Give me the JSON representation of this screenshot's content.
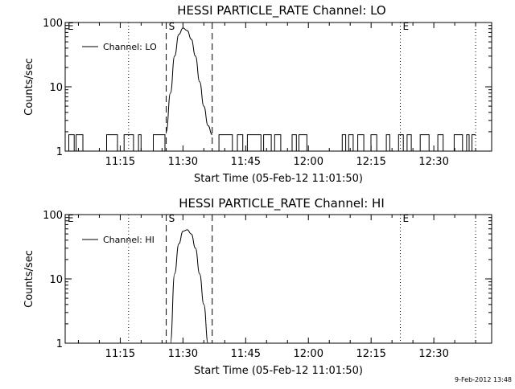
{
  "chart_data": [
    {
      "type": "line",
      "title": "HESSI PARTICLE_RATE Channel: LO",
      "xlabel": "Start Time (05-Feb-12 11:01:50)",
      "ylabel": "Counts/sec",
      "y_scale": "log",
      "ylim": [
        1,
        100
      ],
      "xlim": [
        "11:01:50",
        "12:43:50"
      ],
      "x_ticks": [
        "11:15",
        "11:30",
        "11:45",
        "12:00",
        "12:15",
        "12:30"
      ],
      "y_ticks": [
        "1",
        "10",
        "100"
      ],
      "legend": {
        "entries": [
          "Channel: LO"
        ],
        "placement": "top-left"
      },
      "grid": false,
      "dashed_lines": [
        "11:26",
        "11:37"
      ],
      "dotted_lines": [
        "11:17",
        "12:22",
        "12:40"
      ],
      "markers": [
        {
          "label": "E",
          "time": "11:01:50"
        },
        {
          "label": "S",
          "time": "11:26"
        },
        {
          "label": "E",
          "time": "12:22"
        }
      ],
      "series": [
        {
          "name": "Channel: LO",
          "times": [
            "11:26",
            "11:27",
            "11:28",
            "11:29",
            "11:30",
            "11:31",
            "11:32",
            "11:33",
            "11:34",
            "11:35",
            "11:36",
            "11:37"
          ],
          "values": [
            2,
            8,
            30,
            65,
            82,
            75,
            55,
            30,
            12,
            5,
            2.5,
            1.8
          ]
        }
      ]
    },
    {
      "type": "line",
      "title": "HESSI PARTICLE_RATE Channel: HI",
      "xlabel": "Start Time (05-Feb-12 11:01:50)",
      "ylabel": "Counts/sec",
      "y_scale": "log",
      "ylim": [
        1,
        100
      ],
      "xlim": [
        "11:01:50",
        "12:43:50"
      ],
      "x_ticks": [
        "11:15",
        "11:30",
        "11:45",
        "12:00",
        "12:15",
        "12:30"
      ],
      "y_ticks": [
        "1",
        "10",
        "100"
      ],
      "legend": {
        "entries": [
          "Channel: HI"
        ],
        "placement": "top-left"
      },
      "grid": false,
      "dashed_lines": [
        "11:26",
        "11:37"
      ],
      "dotted_lines": [
        "11:17",
        "12:22",
        "12:40"
      ],
      "markers": [
        {
          "label": "E",
          "time": "11:01:50"
        },
        {
          "label": "S",
          "time": "11:26"
        },
        {
          "label": "E",
          "time": "12:22"
        }
      ],
      "series": [
        {
          "name": "Channel: HI",
          "times": [
            "11:27",
            "11:28",
            "11:29",
            "11:30",
            "11:31",
            "11:32",
            "11:33",
            "11:34",
            "11:35",
            "11:36"
          ],
          "values": [
            1,
            12,
            35,
            55,
            58,
            50,
            30,
            12,
            4,
            1
          ]
        }
      ]
    }
  ],
  "footer": {
    "timestamp": "9-Feb-2012 13:48"
  }
}
